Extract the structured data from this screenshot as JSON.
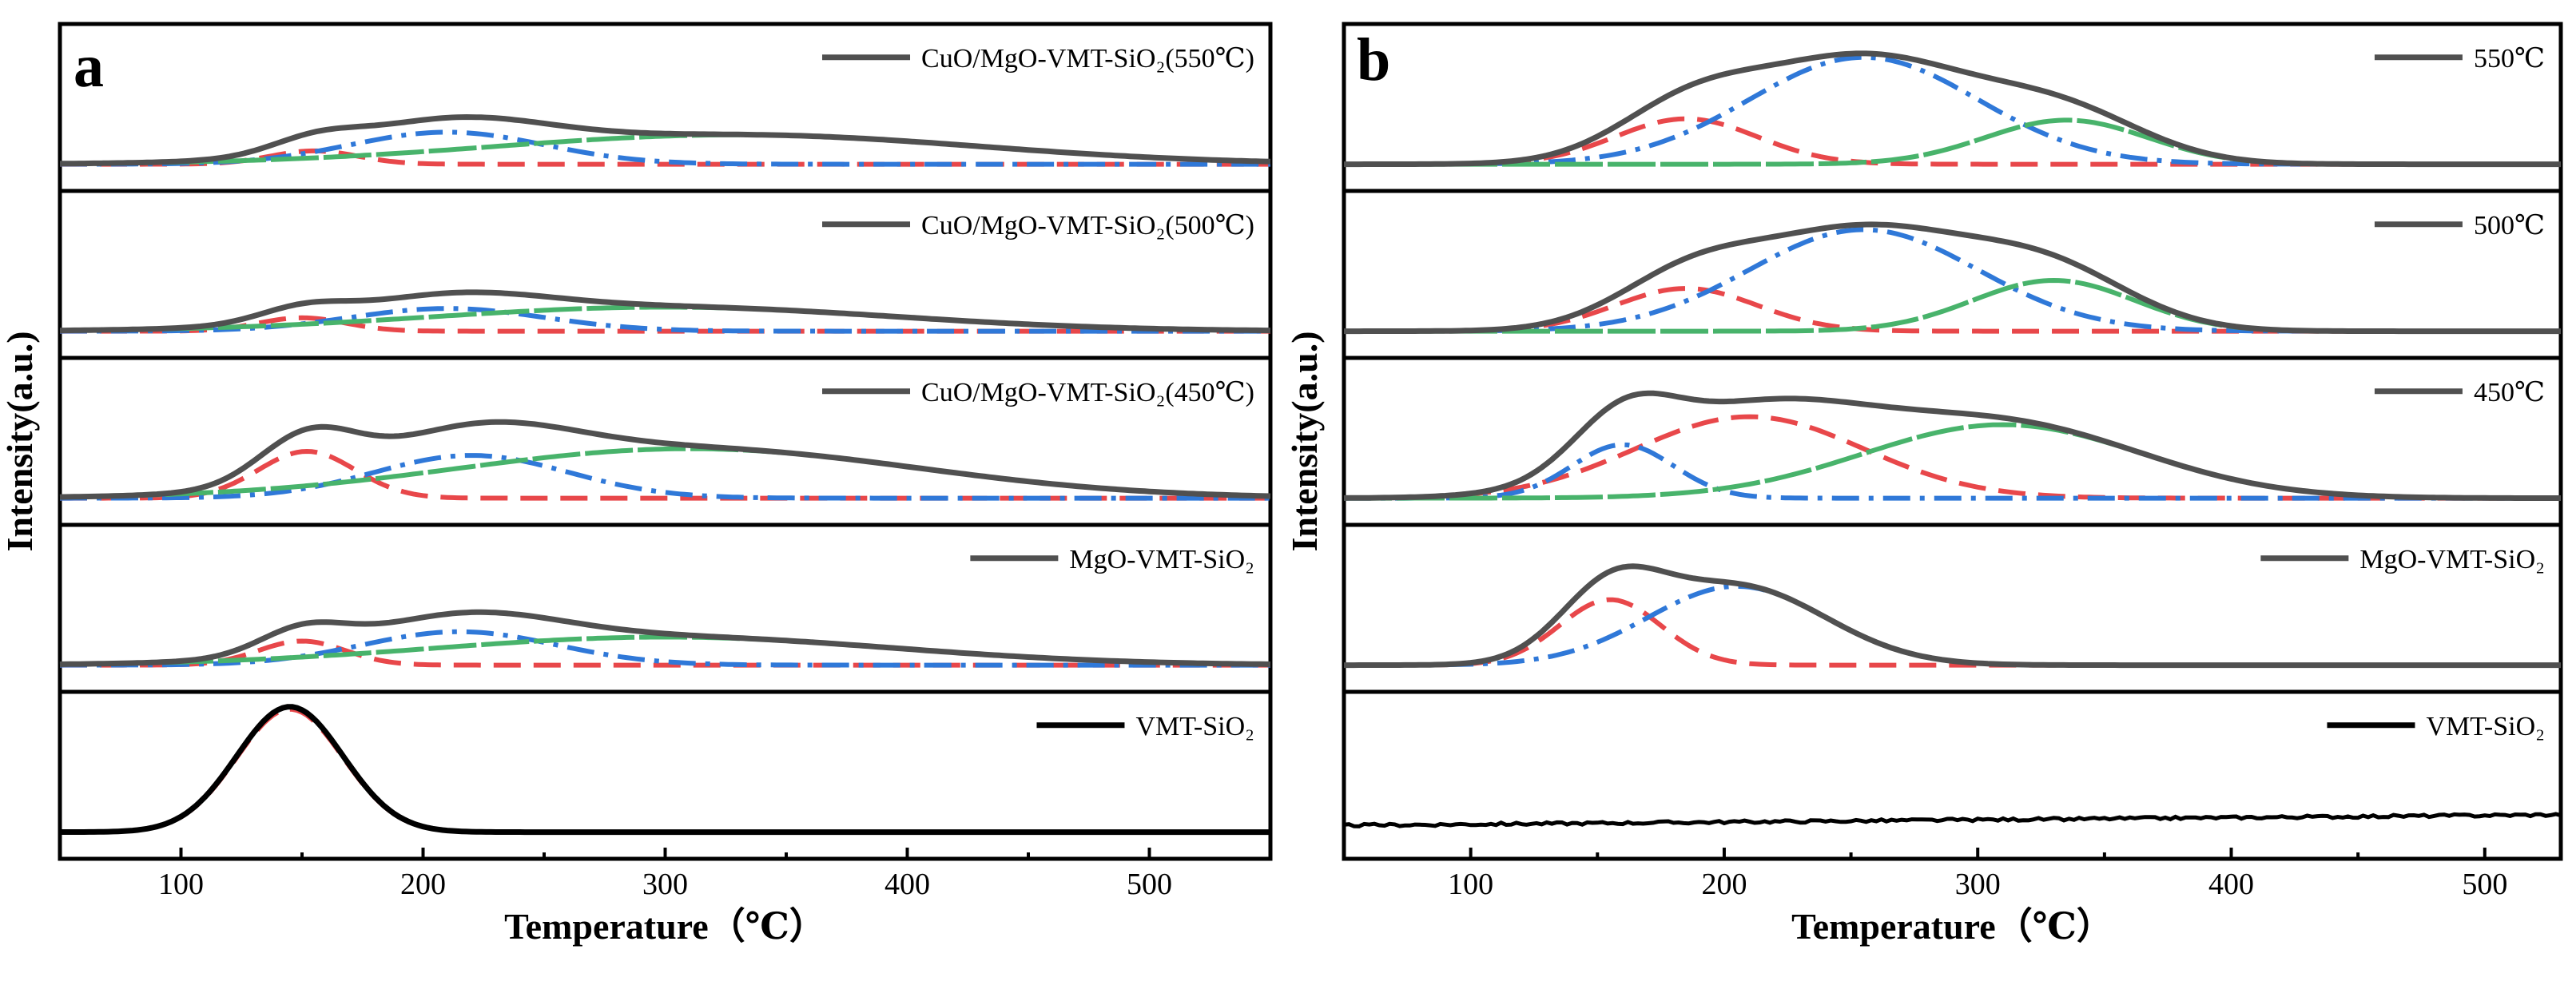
{
  "colors": {
    "total": "#505050",
    "red": "#e8474a",
    "blue": "#2f78d8",
    "green": "#48b36b",
    "black": "#000000"
  },
  "chart_data": [
    {
      "panel": "a",
      "type": "line",
      "xlabel": "Temperature（℃）",
      "ylabel": "Intensity(a.u.)",
      "xlim": [
        50,
        550
      ],
      "xticks": [
        "100",
        "200",
        "300",
        "400",
        "500"
      ],
      "legend_position": "top-right of each sub-panel",
      "rows": [
        {
          "label": "CuO/MgO-VMT-SiO₂(550℃)",
          "components": [
            {
              "color": "red",
              "style": "dash",
              "center": 155,
              "width": 18,
              "height": 0.1
            },
            {
              "color": "blue",
              "style": "dashdot",
              "center": 210,
              "width": 40,
              "height": 0.24
            },
            {
              "color": "green",
              "style": "longdash",
              "center": 330,
              "width": 100,
              "height": 0.22
            }
          ],
          "total": {
            "onset": 100,
            "end": 550,
            "peak_height": 0.34
          }
        },
        {
          "label": "CuO/MgO-VMT-SiO₂(500℃)",
          "components": [
            {
              "color": "red",
              "style": "dash",
              "center": 150,
              "width": 18,
              "height": 0.1
            },
            {
              "color": "blue",
              "style": "dashdot",
              "center": 210,
              "width": 40,
              "height": 0.17
            },
            {
              "color": "green",
              "style": "longdash",
              "center": 300,
              "width": 95,
              "height": 0.18
            }
          ],
          "total": {
            "onset": 100,
            "end": 550,
            "peak_height": 0.26
          }
        },
        {
          "label": "CuO/MgO-VMT-SiO₂(450℃)",
          "components": [
            {
              "color": "red",
              "style": "dash",
              "center": 152,
              "width": 20,
              "height": 0.35
            },
            {
              "color": "blue",
              "style": "dashdot",
              "center": 220,
              "width": 40,
              "height": 0.32
            },
            {
              "color": "green",
              "style": "longdash",
              "center": 310,
              "width": 95,
              "height": 0.37
            }
          ],
          "total": {
            "onset": 100,
            "end": 550,
            "peak_height": 0.6
          }
        },
        {
          "label": "MgO-VMT-SiO₂",
          "components": [
            {
              "color": "red",
              "style": "dash",
              "center": 150,
              "width": 18,
              "height": 0.18
            },
            {
              "color": "blue",
              "style": "dashdot",
              "center": 215,
              "width": 40,
              "height": 0.25
            },
            {
              "color": "green",
              "style": "longdash",
              "center": 300,
              "width": 95,
              "height": 0.21
            }
          ],
          "total": {
            "onset": 100,
            "end": 550,
            "peak_height": 0.35
          }
        },
        {
          "label": "VMT-SiO₂",
          "single_peak": true,
          "components": [
            {
              "color": "red",
              "style": "dash",
              "center": 145,
              "width": 22,
              "height": 0.92
            }
          ],
          "total": {
            "onset": 100,
            "end": 550,
            "peak_height": 0.92,
            "line_color": "black"
          }
        }
      ]
    },
    {
      "panel": "b",
      "type": "line",
      "xlabel": "Temperature（℃）",
      "ylabel": "Intensity(a.u.)",
      "xlim": [
        50,
        530
      ],
      "xticks": [
        "100",
        "200",
        "300",
        "400",
        "500"
      ],
      "legend_position": "top-right of each sub-panel",
      "rows": [
        {
          "label": "550℃",
          "components": [
            {
              "color": "red",
              "style": "dash",
              "center": 185,
              "width": 28,
              "height": 0.34
            },
            {
              "color": "blue",
              "style": "dashdot",
              "center": 255,
              "width": 45,
              "height": 0.8
            },
            {
              "color": "green",
              "style": "longdash",
              "center": 335,
              "width": 32,
              "height": 0.33
            }
          ],
          "total": {
            "onset": 100,
            "end": 410,
            "peak_height": 0.87
          }
        },
        {
          "label": "500℃",
          "components": [
            {
              "color": "red",
              "style": "dash",
              "center": 185,
              "width": 28,
              "height": 0.32
            },
            {
              "color": "blue",
              "style": "dashdot",
              "center": 255,
              "width": 45,
              "height": 0.76
            },
            {
              "color": "green",
              "style": "longdash",
              "center": 330,
              "width": 32,
              "height": 0.38
            }
          ],
          "total": {
            "onset": 100,
            "end": 410,
            "peak_height": 0.82
          }
        },
        {
          "label": "450℃",
          "components": [
            {
              "color": "red",
              "style": "dash",
              "center": 210,
              "width": 45,
              "height": 0.61
            },
            {
              "color": "blue",
              "style": "dashdot",
              "center": 160,
              "width": 20,
              "height": 0.4
            },
            {
              "color": "green",
              "style": "longdash",
              "center": 310,
              "width": 55,
              "height": 0.55
            }
          ],
          "total": {
            "onset": 100,
            "end": 440,
            "peak_height": 0.84
          }
        },
        {
          "label": "MgO-VMT-SiO₂",
          "components": [
            {
              "color": "red",
              "style": "dash",
              "center": 155,
              "width": 20,
              "height": 0.49
            },
            {
              "color": "blue",
              "style": "dashdot",
              "center": 205,
              "width": 35,
              "height": 0.59
            }
          ],
          "total": {
            "onset": 100,
            "end": 280,
            "peak_height": 0.8
          }
        },
        {
          "label": "VMT-SiO₂",
          "flat": true,
          "components": [],
          "total": {
            "onset": 50,
            "end": 530,
            "peak_height": 0.0,
            "line_color": "black"
          }
        }
      ]
    }
  ]
}
